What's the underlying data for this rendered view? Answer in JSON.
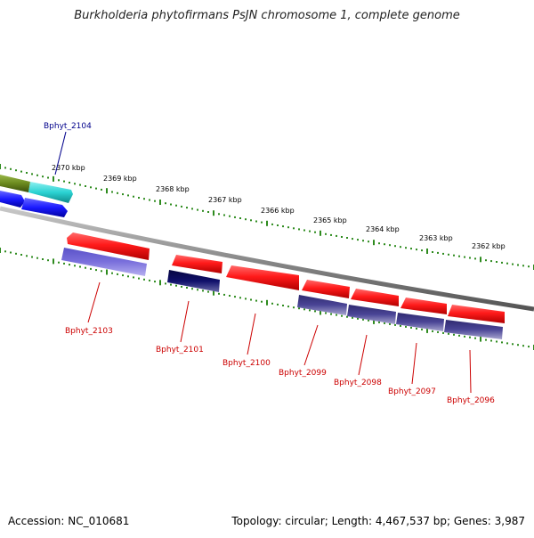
{
  "title": "Burkholderia phytofirmans PsJN chromosome 1, complete genome",
  "footer": {
    "accession": "Accession: NC_010681",
    "summary": "Topology: circular; Length: 4,467,537 bp; Genes: 3,987"
  },
  "colors": {
    "backbone": "#888888",
    "tick": "#2e8b1e",
    "gene_forward": "#ff1a1a",
    "protein_forward": "#7070dd",
    "protein_dark": "#0f0f6a",
    "protein_mid": "#4a4596",
    "blue_gene": "#1a1aff",
    "cyan_gene": "#2ad2d2",
    "olive_gene": "#6b8a1e",
    "label_red": "#cc0000",
    "label_blue": "#00008b"
  },
  "kbp_labels": [
    "2370 kbp",
    "2369 kbp",
    "2368 kbp",
    "2367 kbp",
    "2366 kbp",
    "2365 kbp",
    "2364 kbp",
    "2363 kbp",
    "2362 kbp"
  ],
  "gene_labels": [
    {
      "name": "Bphyt_2104",
      "color": "blue"
    },
    {
      "name": "Bphyt_2103",
      "color": "red"
    },
    {
      "name": "Bphyt_2101",
      "color": "red"
    },
    {
      "name": "Bphyt_2100",
      "color": "red"
    },
    {
      "name": "Bphyt_2099",
      "color": "red"
    },
    {
      "name": "Bphyt_2098",
      "color": "red"
    },
    {
      "name": "Bphyt_2097",
      "color": "red"
    },
    {
      "name": "Bphyt_2096",
      "color": "red"
    }
  ]
}
